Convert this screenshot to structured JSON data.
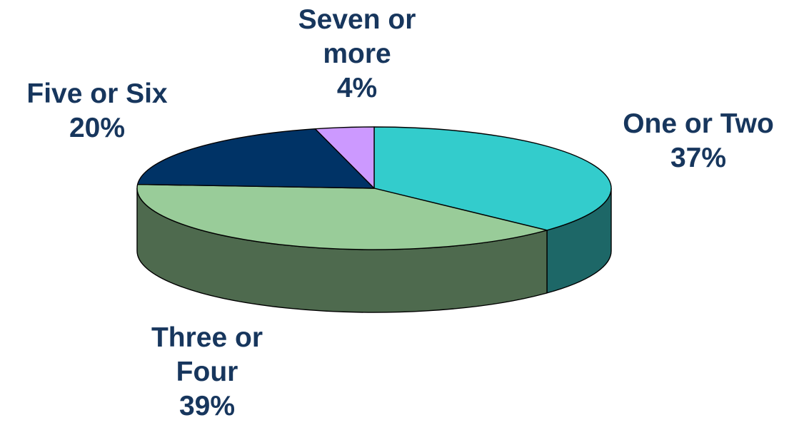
{
  "chart_data": {
    "type": "pie",
    "style": "3d",
    "slices": [
      {
        "label_lines": [
          "One or Two"
        ],
        "percent": "37%",
        "value": 37,
        "color": "#33CCCC",
        "side_color": "#1D6767"
      },
      {
        "label_lines": [
          "Three or",
          "Four"
        ],
        "percent": "39%",
        "value": 39,
        "color": "#99CC99",
        "side_color": "#4E6A4E"
      },
      {
        "label_lines": [
          "Five or Six"
        ],
        "percent": "20%",
        "value": 20,
        "color": "#003366",
        "side_color": "#001A33"
      },
      {
        "label_lines": [
          "Seven or",
          "more"
        ],
        "percent": "4%",
        "value": 4,
        "color": "#CC99FF",
        "side_color": "#665080"
      }
    ],
    "label_color": "#17365D"
  }
}
